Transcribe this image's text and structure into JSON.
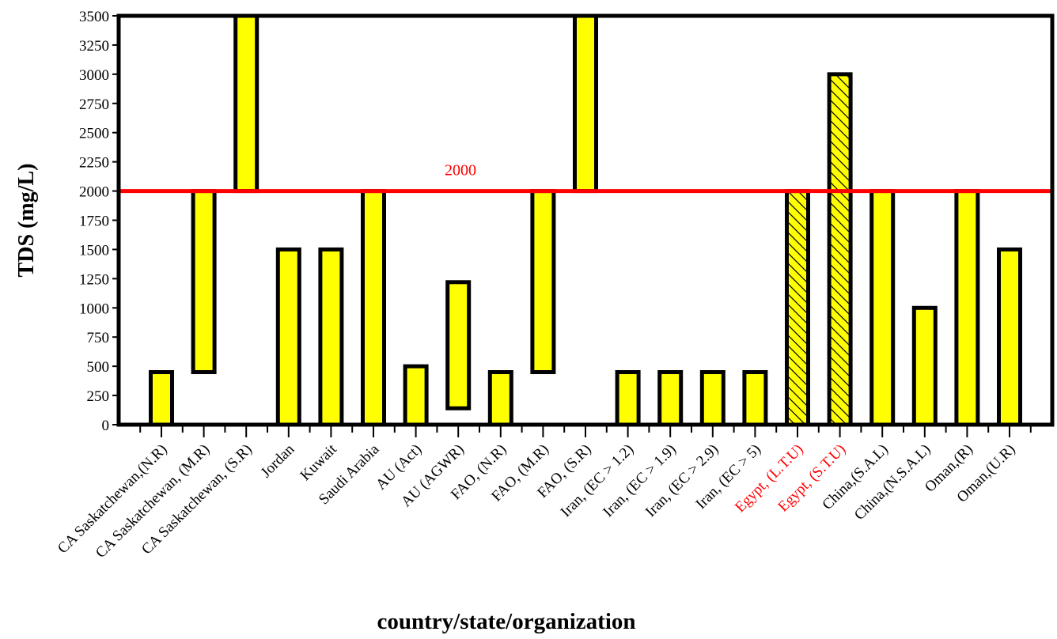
{
  "chart_data": {
    "type": "bar",
    "xlabel": "country/state/organization",
    "ylabel": "TDS (mg/L)",
    "ylim": [
      0,
      3500
    ],
    "yticks": [
      0,
      250,
      500,
      750,
      1000,
      1250,
      1500,
      1750,
      2000,
      2250,
      2500,
      2750,
      3000,
      3250,
      3500
    ],
    "categories": [
      "CA Saskatchewan,(N.R)",
      "CA Saskatchewan, (M.R)",
      "CA Saskatchewan, (S.R)",
      "Jordan",
      "Kuwait",
      "Saudi Arabia",
      "AU (Act)",
      "AU (AGWR)",
      "FAO, (N.R)",
      "FAO,  (M.R)",
      "FAO, (S.R)",
      "Iran, (EC > 1.2)",
      "Iran, (EC > 1.9)",
      "Iran, (EC > 2.9)",
      "Iran, (EC > 5)",
      "Egypt, (L.T.U)",
      "Egypt, (S.T.U)",
      "China,(S.A.L)",
      "China,(N.S.A.L)",
      "Oman,(R)",
      "Oman,(U.R)"
    ],
    "ranges": [
      [
        0,
        450
      ],
      [
        450,
        2000
      ],
      [
        2000,
        3500
      ],
      [
        0,
        1500
      ],
      [
        0,
        1500
      ],
      [
        0,
        2000
      ],
      [
        0,
        500
      ],
      [
        140,
        1220
      ],
      [
        0,
        450
      ],
      [
        450,
        2000
      ],
      [
        2000,
        3500
      ],
      [
        0,
        450
      ],
      [
        0,
        450
      ],
      [
        0,
        450
      ],
      [
        0,
        450
      ],
      [
        0,
        2000
      ],
      [
        0,
        3000
      ],
      [
        0,
        2000
      ],
      [
        0,
        1000
      ],
      [
        0,
        2000
      ],
      [
        0,
        1500
      ]
    ],
    "hatched": [
      false,
      false,
      false,
      false,
      false,
      false,
      false,
      false,
      false,
      false,
      false,
      false,
      false,
      false,
      false,
      true,
      true,
      false,
      false,
      false,
      false
    ],
    "highlighted_labels": [
      false,
      false,
      false,
      false,
      false,
      false,
      false,
      false,
      false,
      false,
      false,
      false,
      false,
      false,
      false,
      true,
      true,
      false,
      false,
      false,
      false
    ],
    "reference_line": {
      "value": 2000,
      "label": "2000",
      "color": "#ff0000"
    },
    "bar_color": "#ffff00",
    "bar_edge_color": "#000000",
    "highlight_label_color": "#ff0000",
    "grid": false,
    "legend": "none"
  }
}
